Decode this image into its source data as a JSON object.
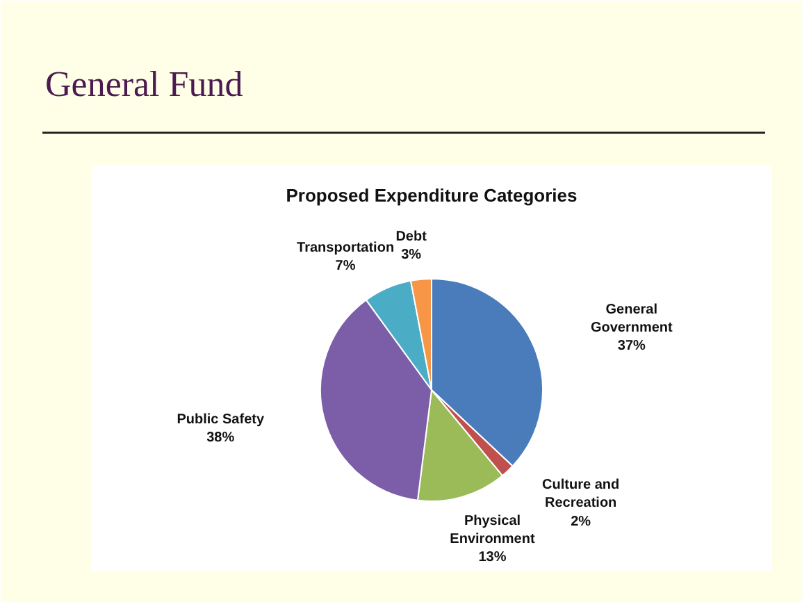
{
  "chart_data": {
    "type": "pie",
    "title": "General Fund",
    "subtitle": "Proposed Expenditure Categories",
    "categories": [
      "General Government",
      "Culture and Recreation",
      "Physical Environment",
      "Public Safety",
      "Transportation",
      "Debt"
    ],
    "values": [
      37,
      2,
      13,
      38,
      7,
      3
    ],
    "value_labels": [
      "37%",
      "2%",
      "13%",
      "38%",
      "7%",
      "3%"
    ],
    "colors": [
      "#4a7cbb",
      "#c0504d",
      "#9bbb59",
      "#7b5ea7",
      "#4bacc6",
      "#f79646"
    ]
  }
}
